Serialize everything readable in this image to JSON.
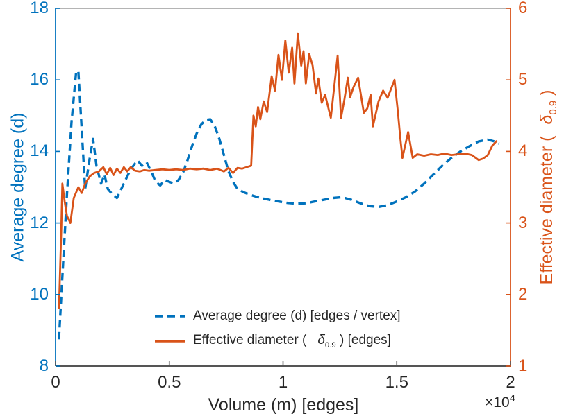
{
  "figure": {
    "background": "#ffffff",
    "title": ""
  },
  "axes": {
    "x": {
      "label": "Volume (m) [edges]",
      "multiplier_base": "×10",
      "multiplier_exp": "4",
      "tick_labels": [
        "0",
        "0.5",
        "1",
        "1.5",
        "2"
      ],
      "tick_values": [
        0,
        5000,
        10000,
        15000,
        20000
      ],
      "lim": [
        0,
        20000
      ],
      "color": "#262626",
      "spine_bottom_color": "#555555",
      "spine_top_color": "#9b9b9b"
    },
    "left": {
      "label": "Average degree (d)",
      "tick_labels": [
        "8",
        "10",
        "12",
        "14",
        "16",
        "18"
      ],
      "tick_values": [
        8,
        10,
        12,
        14,
        16,
        18
      ],
      "lim": [
        8,
        18
      ],
      "color": "#0072BD"
    },
    "right": {
      "label_prefix": "Effective diameter (",
      "label_symbol": "δ",
      "label_symbol_sub": "0.9",
      "label_suffix": ")",
      "tick_labels": [
        "1",
        "2",
        "3",
        "4",
        "5",
        "6"
      ],
      "tick_values": [
        1,
        2,
        3,
        4,
        5,
        6
      ],
      "lim": [
        1,
        6
      ],
      "color": "#D95319"
    }
  },
  "legend": {
    "items": [
      {
        "label": "Average degree (d) [edges / vertex]",
        "line_style": "dashed",
        "color": "#0072BD"
      },
      {
        "prefix": "Effective diameter (",
        "symbol": "δ",
        "symbol_sub": "0.9",
        "suffix": ") [edges]",
        "line_style": "solid",
        "color": "#D95319"
      }
    ]
  },
  "chart_data": {
    "type": "line",
    "title": "",
    "xlabel": "Volume (m) [edges]",
    "x_multiplier": "×10^4",
    "xlim": [
      0,
      20000
    ],
    "grid": false,
    "legend_position": "south-inside",
    "y_left": {
      "label": "Average degree (d)",
      "lim": [
        8,
        18
      ]
    },
    "y_right": {
      "label": "Effective diameter (δ_0.9)",
      "lim": [
        1,
        6
      ]
    },
    "series": [
      {
        "name": "Average degree (d) [edges / vertex]",
        "axis": "left",
        "color": "#0072BD",
        "style": "dashed",
        "points": [
          [
            150,
            8.75
          ],
          [
            300,
            10.5
          ],
          [
            500,
            12.8
          ],
          [
            700,
            14.8
          ],
          [
            900,
            16.2
          ],
          [
            1000,
            16.25
          ],
          [
            1150,
            14.6
          ],
          [
            1300,
            12.95
          ],
          [
            1500,
            13.8
          ],
          [
            1650,
            14.35
          ],
          [
            1800,
            13.6
          ],
          [
            2000,
            13.1
          ],
          [
            2150,
            13.35
          ],
          [
            2300,
            12.95
          ],
          [
            2500,
            12.8
          ],
          [
            2700,
            12.7
          ],
          [
            3000,
            13.1
          ],
          [
            3300,
            13.5
          ],
          [
            3600,
            13.75
          ],
          [
            3800,
            13.6
          ],
          [
            4000,
            13.7
          ],
          [
            4200,
            13.45
          ],
          [
            4400,
            13.15
          ],
          [
            4600,
            13.05
          ],
          [
            4800,
            13.2
          ],
          [
            5000,
            13.15
          ],
          [
            5200,
            13.1
          ],
          [
            5400,
            13.2
          ],
          [
            5600,
            13.4
          ],
          [
            5800,
            13.75
          ],
          [
            6000,
            14.15
          ],
          [
            6200,
            14.5
          ],
          [
            6400,
            14.75
          ],
          [
            6600,
            14.88
          ],
          [
            6800,
            14.9
          ],
          [
            7000,
            14.7
          ],
          [
            7200,
            14.35
          ],
          [
            7400,
            13.9
          ],
          [
            7600,
            13.45
          ],
          [
            7800,
            13.15
          ],
          [
            8000,
            12.95
          ],
          [
            8300,
            12.85
          ],
          [
            8600,
            12.78
          ],
          [
            9000,
            12.7
          ],
          [
            9400,
            12.65
          ],
          [
            9800,
            12.6
          ],
          [
            10200,
            12.56
          ],
          [
            10600,
            12.54
          ],
          [
            11000,
            12.55
          ],
          [
            11400,
            12.6
          ],
          [
            11800,
            12.65
          ],
          [
            12200,
            12.7
          ],
          [
            12600,
            12.72
          ],
          [
            13000,
            12.65
          ],
          [
            13400,
            12.55
          ],
          [
            13800,
            12.47
          ],
          [
            14200,
            12.45
          ],
          [
            14600,
            12.5
          ],
          [
            15000,
            12.6
          ],
          [
            15400,
            12.72
          ],
          [
            15800,
            12.88
          ],
          [
            16200,
            13.1
          ],
          [
            16600,
            13.35
          ],
          [
            17000,
            13.6
          ],
          [
            17400,
            13.82
          ],
          [
            17800,
            14.0
          ],
          [
            18200,
            14.15
          ],
          [
            18600,
            14.28
          ],
          [
            19000,
            14.33
          ],
          [
            19300,
            14.28
          ],
          [
            19500,
            14.22
          ]
        ]
      },
      {
        "name": "Effective diameter (δ_0.9) [edges]",
        "axis": "right",
        "color": "#D95319",
        "style": "solid",
        "points": [
          [
            150,
            1.8
          ],
          [
            250,
            2.9
          ],
          [
            300,
            3.55
          ],
          [
            400,
            3.3
          ],
          [
            500,
            3.1
          ],
          [
            650,
            3.0
          ],
          [
            800,
            3.35
          ],
          [
            1000,
            3.5
          ],
          [
            1150,
            3.42
          ],
          [
            1300,
            3.55
          ],
          [
            1500,
            3.65
          ],
          [
            1700,
            3.7
          ],
          [
            1900,
            3.72
          ],
          [
            2100,
            3.78
          ],
          [
            2250,
            3.68
          ],
          [
            2400,
            3.77
          ],
          [
            2550,
            3.67
          ],
          [
            2700,
            3.76
          ],
          [
            2850,
            3.7
          ],
          [
            3000,
            3.78
          ],
          [
            3150,
            3.72
          ],
          [
            3300,
            3.78
          ],
          [
            3500,
            3.73
          ],
          [
            3700,
            3.72
          ],
          [
            3900,
            3.74
          ],
          [
            4100,
            3.73
          ],
          [
            4400,
            3.74
          ],
          [
            4700,
            3.75
          ],
          [
            5000,
            3.74
          ],
          [
            5300,
            3.75
          ],
          [
            5600,
            3.74
          ],
          [
            5900,
            3.76
          ],
          [
            6200,
            3.75
          ],
          [
            6500,
            3.76
          ],
          [
            6800,
            3.74
          ],
          [
            7100,
            3.76
          ],
          [
            7400,
            3.72
          ],
          [
            7600,
            3.77
          ],
          [
            7800,
            3.7
          ],
          [
            8000,
            3.77
          ],
          [
            8200,
            3.76
          ],
          [
            8400,
            3.78
          ],
          [
            8600,
            3.8
          ],
          [
            8700,
            4.5
          ],
          [
            8800,
            4.35
          ],
          [
            8900,
            4.62
          ],
          [
            9000,
            4.45
          ],
          [
            9150,
            4.7
          ],
          [
            9300,
            4.55
          ],
          [
            9500,
            5.05
          ],
          [
            9650,
            4.85
          ],
          [
            9800,
            5.35
          ],
          [
            9950,
            5.0
          ],
          [
            10100,
            5.55
          ],
          [
            10250,
            5.1
          ],
          [
            10400,
            5.45
          ],
          [
            10500,
            4.95
          ],
          [
            10650,
            5.65
          ],
          [
            10800,
            5.2
          ],
          [
            10900,
            5.4
          ],
          [
            11000,
            4.95
          ],
          [
            11150,
            5.36
          ],
          [
            11300,
            5.2
          ],
          [
            11450,
            4.81
          ],
          [
            11550,
            5.02
          ],
          [
            11700,
            4.68
          ],
          [
            11850,
            4.79
          ],
          [
            12100,
            4.47
          ],
          [
            12400,
            5.34
          ],
          [
            12550,
            4.47
          ],
          [
            12700,
            4.73
          ],
          [
            12850,
            5.03
          ],
          [
            12950,
            4.76
          ],
          [
            13100,
            4.9
          ],
          [
            13300,
            5.03
          ],
          [
            13550,
            4.54
          ],
          [
            13700,
            4.6
          ],
          [
            13850,
            4.79
          ],
          [
            13950,
            4.35
          ],
          [
            14200,
            4.7
          ],
          [
            14400,
            4.85
          ],
          [
            14600,
            4.75
          ],
          [
            14900,
            5.0
          ],
          [
            15050,
            4.55
          ],
          [
            15150,
            4.2
          ],
          [
            15250,
            3.91
          ],
          [
            15500,
            4.27
          ],
          [
            15700,
            3.91
          ],
          [
            15900,
            3.96
          ],
          [
            16200,
            3.94
          ],
          [
            16500,
            3.96
          ],
          [
            16800,
            3.95
          ],
          [
            17100,
            3.97
          ],
          [
            17400,
            3.95
          ],
          [
            17700,
            3.96
          ],
          [
            18000,
            3.97
          ],
          [
            18300,
            3.95
          ],
          [
            18600,
            3.88
          ],
          [
            18800,
            3.9
          ],
          [
            19000,
            3.95
          ],
          [
            19200,
            4.08
          ],
          [
            19400,
            4.15
          ]
        ]
      }
    ]
  }
}
